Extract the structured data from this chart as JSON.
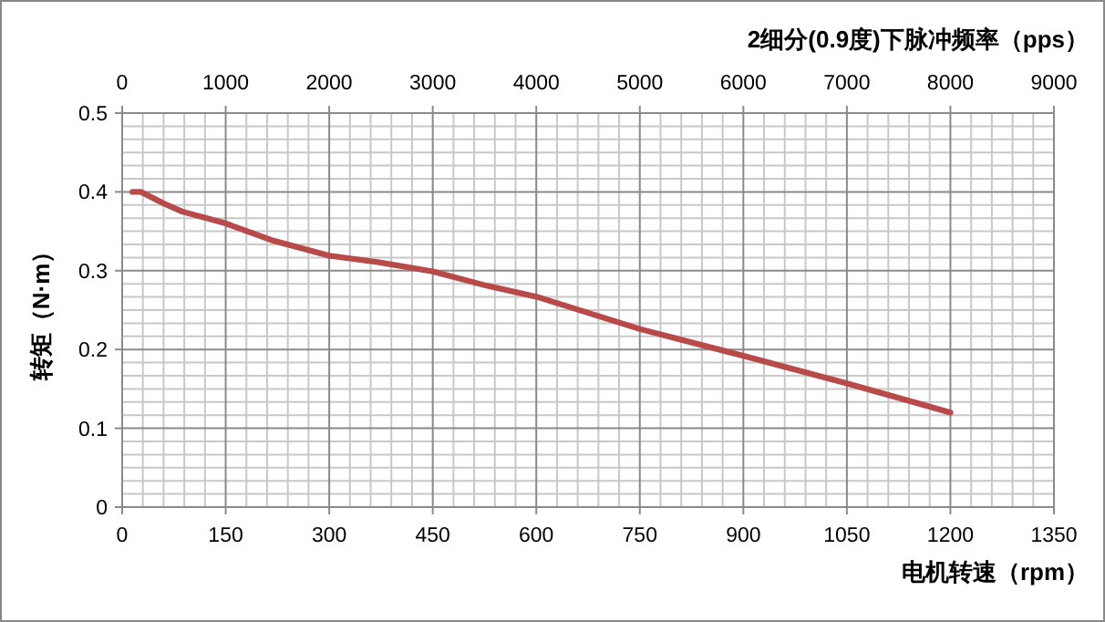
{
  "chart_data": {
    "type": "line",
    "xlabel": "电机转速（rpm）",
    "ylabel": "转矩（N·m）",
    "x2label": "2细分(0.9度)下脉冲频率（pps）",
    "x": [
      15,
      27,
      61,
      87,
      150,
      219,
      300,
      370,
      450,
      528,
      600,
      750,
      900,
      1050,
      1200
    ],
    "series": [
      {
        "color": "#b84a4a",
        "values": [
          0.4,
          0.4,
          0.385,
          0.375,
          0.36,
          0.338,
          0.319,
          0.311,
          0.299,
          0.281,
          0.267,
          0.226,
          0.192,
          0.157,
          0.12
        ]
      }
    ],
    "xlim": [
      0,
      1350
    ],
    "xticks": [
      0,
      150,
      300,
      450,
      600,
      750,
      900,
      1050,
      1200,
      1350
    ],
    "x2lim": [
      0,
      9000
    ],
    "x2ticks": [
      0,
      1000,
      2000,
      3000,
      4000,
      5000,
      6000,
      7000,
      8000,
      9000
    ],
    "ylim": [
      0,
      0.5
    ],
    "yticks": [
      0,
      0.1,
      0.2,
      0.3,
      0.4,
      0.5
    ],
    "grid": true,
    "marker": "none",
    "line_style": "solid"
  }
}
